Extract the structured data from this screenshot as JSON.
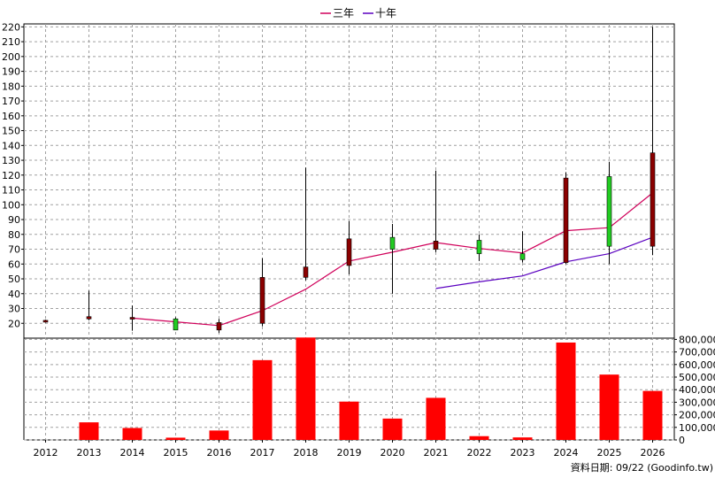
{
  "chart_data": [
    {
      "type": "candlestick",
      "x": [
        "2012",
        "2013",
        "2014",
        "2015",
        "2016",
        "2017",
        "2018",
        "2019",
        "2020",
        "2021",
        "2022",
        "2023",
        "2024",
        "2025",
        "2026"
      ],
      "ylim": [
        10,
        222
      ],
      "y_ticks": [
        20,
        30,
        40,
        50,
        60,
        70,
        80,
        90,
        100,
        110,
        120,
        130,
        140,
        150,
        160,
        170,
        180,
        190,
        200,
        210,
        220
      ],
      "grid": true,
      "legend_position": "top-center",
      "colors": {
        "up": "#8b0000",
        "down": "#22cc22",
        "wick": "#000000"
      },
      "ohlc": [
        {
          "x": "2012",
          "open": 21.5,
          "high": 22.5,
          "low": 20.5,
          "close": 22.0
        },
        {
          "x": "2013",
          "open": 23.0,
          "high": 42.0,
          "low": 22.0,
          "close": 24.5
        },
        {
          "x": "2014",
          "open": 23.5,
          "high": 32.0,
          "low": 15.0,
          "close": 24.0
        },
        {
          "x": "2015",
          "open": 23.0,
          "high": 24.0,
          "low": 16.0,
          "close": 15.5
        },
        {
          "x": "2016",
          "open": 15.5,
          "high": 23.0,
          "low": 13.5,
          "close": 20.5
        },
        {
          "x": "2017",
          "open": 20.0,
          "high": 64.0,
          "low": 18.0,
          "close": 51.0
        },
        {
          "x": "2018",
          "open": 51.0,
          "high": 125.0,
          "low": 49.0,
          "close": 58.0
        },
        {
          "x": "2019",
          "open": 59.0,
          "high": 89.0,
          "low": 53.0,
          "close": 77.0
        },
        {
          "x": "2020",
          "open": 78.0,
          "high": 87.0,
          "low": 40.0,
          "close": 70.0
        },
        {
          "x": "2021",
          "open": 70.0,
          "high": 123.0,
          "low": 68.0,
          "close": 75.5
        },
        {
          "x": "2022",
          "open": 76.0,
          "high": 80.0,
          "low": 62.0,
          "close": 67.0
        },
        {
          "x": "2023",
          "open": 67.0,
          "high": 82.0,
          "low": 61.0,
          "close": 63.0
        },
        {
          "x": "2024",
          "open": 61.0,
          "high": 122.0,
          "low": 60.0,
          "close": 118.0
        },
        {
          "x": "2025",
          "open": 119.0,
          "high": 129.0,
          "low": 60.0,
          "close": 72.0
        },
        {
          "x": "2026",
          "open": 72.0,
          "high": 220.0,
          "low": 66.0,
          "close": 135.0
        }
      ],
      "series": [
        {
          "name": "三年",
          "color": "#d0005a",
          "values": [
            null,
            null,
            23.5,
            21.0,
            18.5,
            28.5,
            43.0,
            62.0,
            68.0,
            74.5,
            70.5,
            67.5,
            82.5,
            84.5,
            108.0
          ]
        },
        {
          "name": "十年",
          "color": "#5a00c0",
          "values": [
            null,
            null,
            null,
            null,
            null,
            null,
            null,
            null,
            null,
            43.5,
            48.0,
            52.0,
            61.5,
            67.0,
            78.0
          ]
        }
      ]
    },
    {
      "type": "bar",
      "x": [
        "2012",
        "2013",
        "2014",
        "2015",
        "2016",
        "2017",
        "2018",
        "2019",
        "2020",
        "2021",
        "2022",
        "2023",
        "2024",
        "2025",
        "2026"
      ],
      "values": [
        0,
        140000,
        95000,
        18000,
        75000,
        635000,
        815000,
        305000,
        170000,
        335000,
        30000,
        20000,
        775000,
        520000,
        390000
      ],
      "ylim": [
        0,
        810000
      ],
      "y_ticks": [
        "0",
        "100,000",
        "200,000",
        "300,000",
        "400,000",
        "500,000",
        "600,000",
        "700,000",
        "800,000"
      ],
      "color": "#ff0000",
      "grid": true
    }
  ],
  "legend": {
    "items": [
      {
        "label": "三年",
        "color": "#d0005a"
      },
      {
        "label": "十年",
        "color": "#5a00c0"
      }
    ]
  },
  "footer": {
    "text": "資料日期: 09/22  (Goodinfo.tw)"
  }
}
